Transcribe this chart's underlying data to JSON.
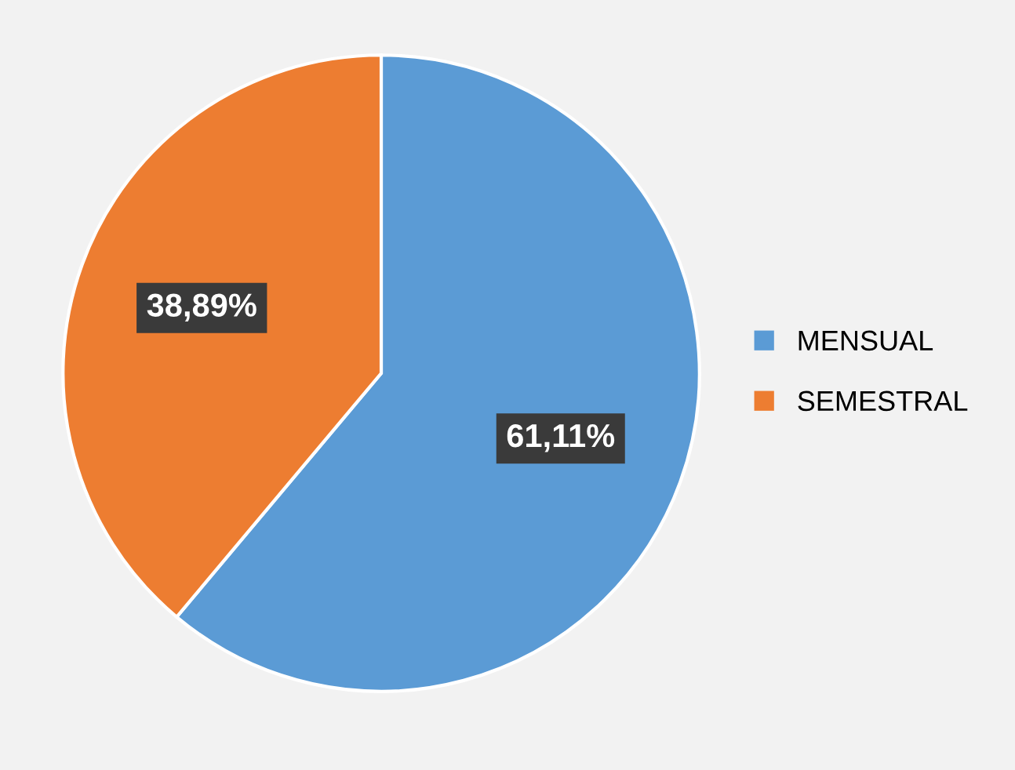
{
  "chart_data": {
    "type": "pie",
    "categories": [
      "MENSUAL",
      "SEMESTRAL"
    ],
    "values": [
      61.11,
      38.89
    ],
    "colors": [
      "#5b9bd5",
      "#ed7d31"
    ],
    "value_labels": [
      "61,11%",
      "38,89%"
    ],
    "legend": "right"
  }
}
